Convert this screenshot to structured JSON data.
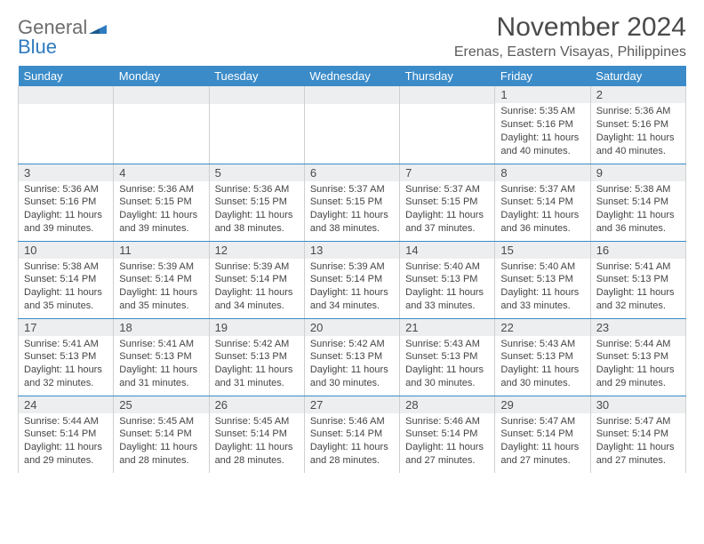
{
  "logo": {
    "text1": "General",
    "text2": "Blue"
  },
  "title": "November 2024",
  "subtitle": "Erenas, Eastern Visayas, Philippines",
  "styling": {
    "header_bg": "#3b8bc8",
    "header_color": "#ffffff",
    "daynum_bg": "#eceef0",
    "border_color": "#d0d0d0",
    "row_divider": "#3b8bc8",
    "title_color": "#4a4a4a",
    "body_text_color": "#444444",
    "page_bg": "#ffffff",
    "logo_gray": "#6d6d6d",
    "logo_blue": "#2f7bbf",
    "title_fontsize": 30,
    "subtitle_fontsize": 16,
    "header_fontsize": 13,
    "daynum_fontsize": 13,
    "body_fontsize": 11,
    "columns": 7,
    "body_rows": 5
  },
  "day_headers": [
    "Sunday",
    "Monday",
    "Tuesday",
    "Wednesday",
    "Thursday",
    "Friday",
    "Saturday"
  ],
  "weeks": [
    [
      {
        "n": "",
        "sr": "",
        "ss": "",
        "dl": ""
      },
      {
        "n": "",
        "sr": "",
        "ss": "",
        "dl": ""
      },
      {
        "n": "",
        "sr": "",
        "ss": "",
        "dl": ""
      },
      {
        "n": "",
        "sr": "",
        "ss": "",
        "dl": ""
      },
      {
        "n": "",
        "sr": "",
        "ss": "",
        "dl": ""
      },
      {
        "n": "1",
        "sr": "Sunrise: 5:35 AM",
        "ss": "Sunset: 5:16 PM",
        "dl": "Daylight: 11 hours and 40 minutes."
      },
      {
        "n": "2",
        "sr": "Sunrise: 5:36 AM",
        "ss": "Sunset: 5:16 PM",
        "dl": "Daylight: 11 hours and 40 minutes."
      }
    ],
    [
      {
        "n": "3",
        "sr": "Sunrise: 5:36 AM",
        "ss": "Sunset: 5:16 PM",
        "dl": "Daylight: 11 hours and 39 minutes."
      },
      {
        "n": "4",
        "sr": "Sunrise: 5:36 AM",
        "ss": "Sunset: 5:15 PM",
        "dl": "Daylight: 11 hours and 39 minutes."
      },
      {
        "n": "5",
        "sr": "Sunrise: 5:36 AM",
        "ss": "Sunset: 5:15 PM",
        "dl": "Daylight: 11 hours and 38 minutes."
      },
      {
        "n": "6",
        "sr": "Sunrise: 5:37 AM",
        "ss": "Sunset: 5:15 PM",
        "dl": "Daylight: 11 hours and 38 minutes."
      },
      {
        "n": "7",
        "sr": "Sunrise: 5:37 AM",
        "ss": "Sunset: 5:15 PM",
        "dl": "Daylight: 11 hours and 37 minutes."
      },
      {
        "n": "8",
        "sr": "Sunrise: 5:37 AM",
        "ss": "Sunset: 5:14 PM",
        "dl": "Daylight: 11 hours and 36 minutes."
      },
      {
        "n": "9",
        "sr": "Sunrise: 5:38 AM",
        "ss": "Sunset: 5:14 PM",
        "dl": "Daylight: 11 hours and 36 minutes."
      }
    ],
    [
      {
        "n": "10",
        "sr": "Sunrise: 5:38 AM",
        "ss": "Sunset: 5:14 PM",
        "dl": "Daylight: 11 hours and 35 minutes."
      },
      {
        "n": "11",
        "sr": "Sunrise: 5:39 AM",
        "ss": "Sunset: 5:14 PM",
        "dl": "Daylight: 11 hours and 35 minutes."
      },
      {
        "n": "12",
        "sr": "Sunrise: 5:39 AM",
        "ss": "Sunset: 5:14 PM",
        "dl": "Daylight: 11 hours and 34 minutes."
      },
      {
        "n": "13",
        "sr": "Sunrise: 5:39 AM",
        "ss": "Sunset: 5:14 PM",
        "dl": "Daylight: 11 hours and 34 minutes."
      },
      {
        "n": "14",
        "sr": "Sunrise: 5:40 AM",
        "ss": "Sunset: 5:13 PM",
        "dl": "Daylight: 11 hours and 33 minutes."
      },
      {
        "n": "15",
        "sr": "Sunrise: 5:40 AM",
        "ss": "Sunset: 5:13 PM",
        "dl": "Daylight: 11 hours and 33 minutes."
      },
      {
        "n": "16",
        "sr": "Sunrise: 5:41 AM",
        "ss": "Sunset: 5:13 PM",
        "dl": "Daylight: 11 hours and 32 minutes."
      }
    ],
    [
      {
        "n": "17",
        "sr": "Sunrise: 5:41 AM",
        "ss": "Sunset: 5:13 PM",
        "dl": "Daylight: 11 hours and 32 minutes."
      },
      {
        "n": "18",
        "sr": "Sunrise: 5:41 AM",
        "ss": "Sunset: 5:13 PM",
        "dl": "Daylight: 11 hours and 31 minutes."
      },
      {
        "n": "19",
        "sr": "Sunrise: 5:42 AM",
        "ss": "Sunset: 5:13 PM",
        "dl": "Daylight: 11 hours and 31 minutes."
      },
      {
        "n": "20",
        "sr": "Sunrise: 5:42 AM",
        "ss": "Sunset: 5:13 PM",
        "dl": "Daylight: 11 hours and 30 minutes."
      },
      {
        "n": "21",
        "sr": "Sunrise: 5:43 AM",
        "ss": "Sunset: 5:13 PM",
        "dl": "Daylight: 11 hours and 30 minutes."
      },
      {
        "n": "22",
        "sr": "Sunrise: 5:43 AM",
        "ss": "Sunset: 5:13 PM",
        "dl": "Daylight: 11 hours and 30 minutes."
      },
      {
        "n": "23",
        "sr": "Sunrise: 5:44 AM",
        "ss": "Sunset: 5:13 PM",
        "dl": "Daylight: 11 hours and 29 minutes."
      }
    ],
    [
      {
        "n": "24",
        "sr": "Sunrise: 5:44 AM",
        "ss": "Sunset: 5:14 PM",
        "dl": "Daylight: 11 hours and 29 minutes."
      },
      {
        "n": "25",
        "sr": "Sunrise: 5:45 AM",
        "ss": "Sunset: 5:14 PM",
        "dl": "Daylight: 11 hours and 28 minutes."
      },
      {
        "n": "26",
        "sr": "Sunrise: 5:45 AM",
        "ss": "Sunset: 5:14 PM",
        "dl": "Daylight: 11 hours and 28 minutes."
      },
      {
        "n": "27",
        "sr": "Sunrise: 5:46 AM",
        "ss": "Sunset: 5:14 PM",
        "dl": "Daylight: 11 hours and 28 minutes."
      },
      {
        "n": "28",
        "sr": "Sunrise: 5:46 AM",
        "ss": "Sunset: 5:14 PM",
        "dl": "Daylight: 11 hours and 27 minutes."
      },
      {
        "n": "29",
        "sr": "Sunrise: 5:47 AM",
        "ss": "Sunset: 5:14 PM",
        "dl": "Daylight: 11 hours and 27 minutes."
      },
      {
        "n": "30",
        "sr": "Sunrise: 5:47 AM",
        "ss": "Sunset: 5:14 PM",
        "dl": "Daylight: 11 hours and 27 minutes."
      }
    ]
  ]
}
